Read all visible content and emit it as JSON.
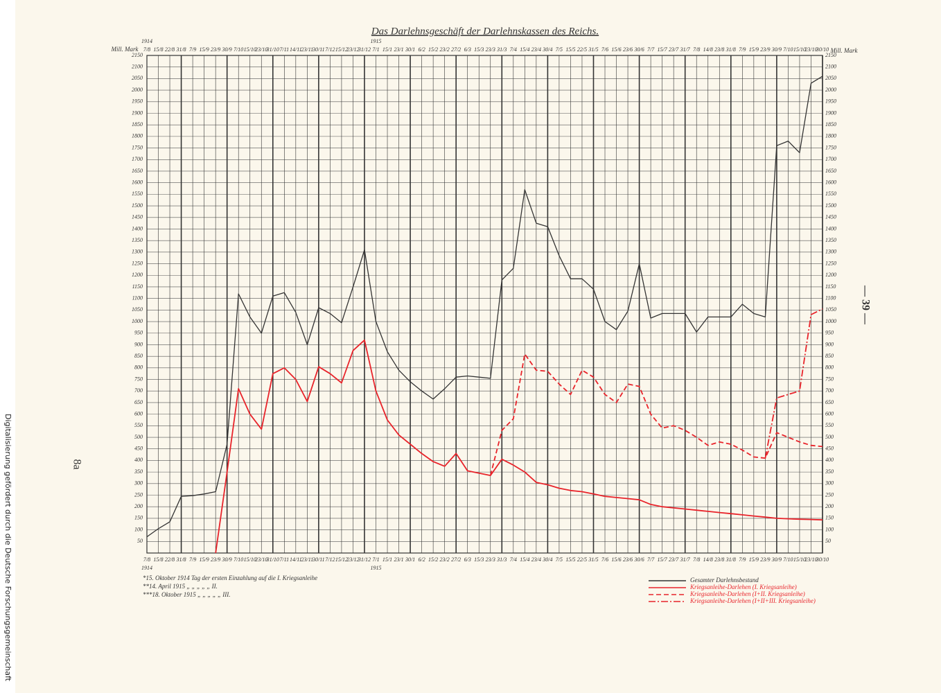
{
  "chart_data": {
    "type": "line",
    "title": "Das Darlehnsgeschäft der Darlehnskassen des Reichs.",
    "y_axis_label": "Mill. Mark",
    "year_labels": [
      "1914",
      "1915"
    ],
    "categories": [
      "7/8",
      "15/8",
      "22/8",
      "31/8",
      "7/9",
      "15/9",
      "23/9",
      "30/9",
      "7/10",
      "15/10",
      "23/10",
      "31/10",
      "7/11",
      "14/11",
      "23/11",
      "30/11",
      "7/12",
      "15/12",
      "23/12",
      "31/12",
      "7/1",
      "15/1",
      "23/1",
      "30/1",
      "6/2",
      "15/2",
      "23/2",
      "27/2",
      "6/3",
      "15/3",
      "23/3",
      "31/3",
      "7/4",
      "15/4",
      "23/4",
      "30/4",
      "7/5",
      "15/5",
      "22/5",
      "31/5",
      "7/6",
      "15/6",
      "23/6",
      "30/6",
      "7/7",
      "15/7",
      "23/7",
      "31/7",
      "7/8",
      "14/8",
      "23/8",
      "31/8",
      "7/9",
      "15/9",
      "23/9",
      "30/9",
      "7/10",
      "15/10",
      "23/10",
      "30/10"
    ],
    "series": [
      {
        "name": "Gesamter Darlehnsbestand",
        "color": "#333333",
        "line_style": "solid",
        "values": [
          70,
          105,
          135,
          245,
          248,
          255,
          265,
          470,
          1120,
          1020,
          950,
          1110,
          1125,
          1040,
          900,
          1060,
          1035,
          995,
          1150,
          1310,
          1000,
          870,
          790,
          740,
          700,
          665,
          710,
          760,
          765,
          760,
          755,
          1180,
          1230,
          1570,
          1425,
          1410,
          1285,
          1185,
          1185,
          1140,
          1000,
          965,
          1045,
          1250,
          1015,
          1035,
          1035,
          1035,
          955,
          1020,
          1020,
          1020,
          1075,
          1035,
          1020,
          1760,
          1780,
          1730,
          2030,
          2060
        ]
      },
      {
        "name": "Kriegsanleihe-Darlehen (I. Kriegsanleihe)",
        "color": "#e8232a",
        "line_style": "solid",
        "values": [
          null,
          null,
          null,
          null,
          null,
          null,
          0,
          350,
          710,
          600,
          535,
          775,
          800,
          750,
          655,
          805,
          775,
          735,
          875,
          920,
          700,
          575,
          510,
          470,
          430,
          395,
          375,
          430,
          355,
          345,
          335,
          405,
          380,
          350,
          305,
          295,
          280,
          270,
          265,
          255,
          245,
          240,
          235,
          230,
          210,
          200,
          195,
          190,
          185,
          180,
          175,
          170,
          165,
          160,
          155,
          150,
          148,
          146,
          145,
          143
        ]
      },
      {
        "name": "Kriegsanleihe-Darlehen (I+II. Kriegsanleihe)",
        "color": "#e8232a",
        "line_style": "dashed",
        "values": [
          null,
          null,
          null,
          null,
          null,
          null,
          null,
          null,
          null,
          null,
          null,
          null,
          null,
          null,
          null,
          null,
          null,
          null,
          null,
          null,
          null,
          null,
          null,
          null,
          null,
          null,
          null,
          null,
          null,
          null,
          335,
          530,
          580,
          860,
          790,
          785,
          730,
          685,
          790,
          760,
          685,
          650,
          730,
          720,
          600,
          540,
          550,
          530,
          500,
          465,
          480,
          470,
          445,
          415,
          410,
          520,
          500,
          480,
          465,
          460
        ]
      },
      {
        "name": "Kriegsanleihe-Darlehen (I+II+III. Kriegsanleihe)",
        "color": "#e8232a",
        "line_style": "dashdot",
        "values": [
          null,
          null,
          null,
          null,
          null,
          null,
          null,
          null,
          null,
          null,
          null,
          null,
          null,
          null,
          null,
          null,
          null,
          null,
          null,
          null,
          null,
          null,
          null,
          null,
          null,
          null,
          null,
          null,
          null,
          null,
          null,
          null,
          null,
          null,
          null,
          null,
          null,
          null,
          null,
          null,
          null,
          null,
          null,
          null,
          null,
          null,
          null,
          null,
          null,
          null,
          null,
          null,
          null,
          null,
          410,
          670,
          685,
          700,
          1030,
          1055
        ]
      }
    ],
    "ylim": [
      0,
      2150
    ],
    "yticks": [
      50,
      100,
      150,
      200,
      250,
      300,
      350,
      400,
      450,
      500,
      550,
      600,
      650,
      700,
      750,
      800,
      850,
      900,
      950,
      1000,
      1050,
      1100,
      1150,
      1200,
      1250,
      1300,
      1350,
      1400,
      1450,
      1500,
      1550,
      1600,
      1650,
      1700,
      1750,
      1800,
      1850,
      1900,
      1950,
      2000,
      2050,
      2100,
      2150
    ],
    "grid": true,
    "footnotes": [
      "*15. Oktober 1914 Tag der ersten Einzahlung auf die I. Kriegsanleihe",
      "**14. April 1915 „ „ „ „ „ II.",
      "***18. Oktober 1915 „ „ „ „ „ III."
    ],
    "legend_position": "lower right"
  },
  "page_number": "— 39 —",
  "plate_label": "8a",
  "sidebar_note": "Digitalisierung gefördert durch die Deutsche Forschungsgemeinschaft"
}
